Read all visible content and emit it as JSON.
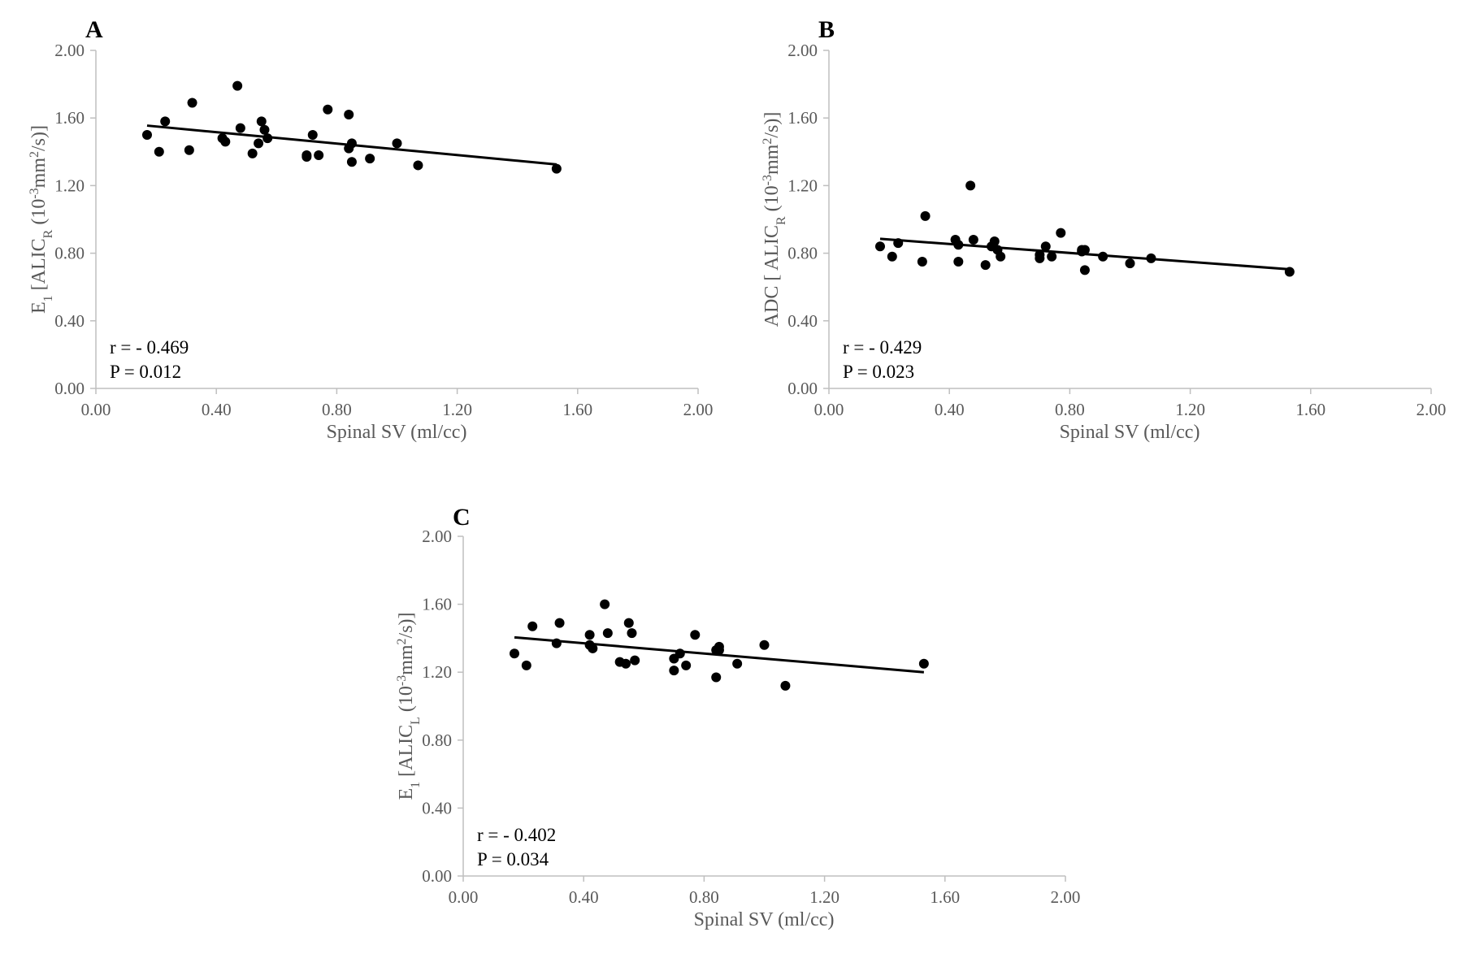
{
  "chart_data": [
    {
      "type": "scatter",
      "panel": "A",
      "title": "",
      "xlabel": "Spinal SV (ml/cc)",
      "ylabel_parts": {
        "a": "E",
        "a_sub": "1",
        "b": " [ALIC",
        "b_sub": "R",
        "c": " (10",
        "c_sup": "-3",
        "d": "mm",
        "d_sup": "2",
        "e": "/s)]"
      },
      "xlim": [
        0,
        2
      ],
      "ylim": [
        0,
        2
      ],
      "xticks": [
        "0.00",
        "0.40",
        "0.80",
        "1.20",
        "1.60",
        "2.00"
      ],
      "yticks": [
        "0.00",
        "0.40",
        "0.80",
        "1.20",
        "1.60",
        "2.00"
      ],
      "annotation_r": "r = - 0.469",
      "annotation_p": "P = 0.012",
      "trendline": {
        "x": [
          0.17,
          1.53
        ],
        "y": [
          1.555,
          1.325
        ]
      },
      "x": [
        0.17,
        0.21,
        0.23,
        0.31,
        0.32,
        0.42,
        0.43,
        0.47,
        0.48,
        0.52,
        0.54,
        0.55,
        0.56,
        0.57,
        0.7,
        0.7,
        0.72,
        0.74,
        0.77,
        0.84,
        0.84,
        0.85,
        0.85,
        0.91,
        1.0,
        1.07,
        1.53
      ],
      "y": [
        1.5,
        1.4,
        1.58,
        1.41,
        1.69,
        1.48,
        1.46,
        1.79,
        1.54,
        1.39,
        1.45,
        1.58,
        1.53,
        1.48,
        1.38,
        1.37,
        1.5,
        1.38,
        1.65,
        1.62,
        1.42,
        1.45,
        1.34,
        1.36,
        1.45,
        1.32,
        1.3
      ]
    },
    {
      "type": "scatter",
      "panel": "B",
      "title": "",
      "xlabel": "Spinal SV (ml/cc)",
      "ylabel_parts": {
        "a": "ADC",
        "a_sub": "",
        "b": " [ ALIC",
        "b_sub": "R",
        "c": " (10",
        "c_sup": "-3",
        "d": "mm",
        "d_sup": "2",
        "e": "/s)]"
      },
      "xlim": [
        0,
        2
      ],
      "ylim": [
        0,
        2
      ],
      "xticks": [
        "0.00",
        "0.40",
        "0.80",
        "1.20",
        "1.60",
        "2.00"
      ],
      "yticks": [
        "0.00",
        "0.40",
        "0.80",
        "1.20",
        "1.60",
        "2.00"
      ],
      "annotation_r": "r = - 0.429",
      "annotation_p": "P = 0.023",
      "trendline": {
        "x": [
          0.17,
          1.53
        ],
        "y": [
          0.885,
          0.705
        ]
      },
      "x": [
        0.17,
        0.21,
        0.23,
        0.31,
        0.32,
        0.42,
        0.43,
        0.43,
        0.47,
        0.48,
        0.52,
        0.54,
        0.55,
        0.56,
        0.57,
        0.7,
        0.7,
        0.72,
        0.74,
        0.77,
        0.84,
        0.84,
        0.85,
        0.85,
        0.91,
        1.0,
        1.07,
        1.53
      ],
      "y": [
        0.84,
        0.78,
        0.86,
        0.75,
        1.02,
        0.88,
        0.85,
        0.75,
        1.2,
        0.88,
        0.73,
        0.84,
        0.87,
        0.82,
        0.78,
        0.79,
        0.77,
        0.84,
        0.78,
        0.92,
        0.82,
        0.81,
        0.82,
        0.7,
        0.78,
        0.74,
        0.77,
        0.69
      ]
    },
    {
      "type": "scatter",
      "panel": "C",
      "title": "",
      "xlabel": "Spinal SV (ml/cc)",
      "ylabel_parts": {
        "a": "E",
        "a_sub": "1",
        "b": " [ALIC",
        "b_sub": "L",
        "c": " (10",
        "c_sup": "-3",
        "d": "mm",
        "d_sup": "2",
        "e": "/s)]"
      },
      "xlim": [
        0,
        2
      ],
      "ylim": [
        0,
        2
      ],
      "xticks": [
        "0.00",
        "0.40",
        "0.80",
        "1.20",
        "1.60",
        "2.00"
      ],
      "yticks": [
        "0.00",
        "0.40",
        "0.80",
        "1.20",
        "1.60",
        "2.00"
      ],
      "annotation_r": "r = - 0.402",
      "annotation_p": "P = 0.034",
      "trendline": {
        "x": [
          0.17,
          1.53
        ],
        "y": [
          1.405,
          1.2
        ]
      },
      "x": [
        0.17,
        0.21,
        0.23,
        0.31,
        0.32,
        0.42,
        0.42,
        0.43,
        0.47,
        0.48,
        0.52,
        0.54,
        0.55,
        0.56,
        0.57,
        0.7,
        0.7,
        0.72,
        0.74,
        0.77,
        0.84,
        0.84,
        0.85,
        0.85,
        0.91,
        1.0,
        1.07,
        1.53
      ],
      "y": [
        1.31,
        1.24,
        1.47,
        1.37,
        1.49,
        1.42,
        1.36,
        1.34,
        1.6,
        1.43,
        1.26,
        1.25,
        1.49,
        1.43,
        1.27,
        1.28,
        1.21,
        1.31,
        1.24,
        1.42,
        1.33,
        1.17,
        1.35,
        1.33,
        1.25,
        1.36,
        1.12,
        1.25
      ]
    }
  ]
}
